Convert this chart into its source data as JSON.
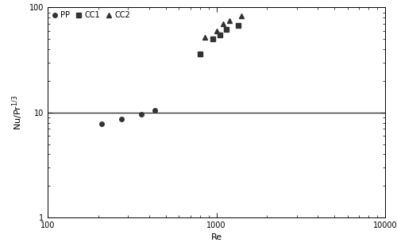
{
  "title": "",
  "xlabel": "Re",
  "ylabel": "Nu/Pr$^{1/3}$",
  "xlim": [
    100,
    10000
  ],
  "ylim": [
    1,
    100
  ],
  "hline_y": 10,
  "PP": {
    "Re": [
      210,
      275,
      360,
      430
    ],
    "NuPr": [
      7.8,
      8.7,
      9.6,
      10.4
    ],
    "marker": "o",
    "label": "PP"
  },
  "CC1": {
    "Re": [
      800,
      950,
      1050,
      1150,
      1350
    ],
    "NuPr": [
      36,
      50,
      55,
      62,
      67
    ],
    "marker": "s",
    "label": "CC1"
  },
  "CC2": {
    "Re": [
      850,
      1000,
      1100,
      1200,
      1400
    ],
    "NuPr": [
      52,
      60,
      70,
      75,
      83
    ],
    "marker": "^",
    "label": "CC2"
  },
  "marker_color": "#333333",
  "marker_size": 4,
  "line_color": "#333333",
  "line_width": 1.0,
  "background_color": "#ffffff",
  "legend_fontsize": 7,
  "axis_label_fontsize": 8,
  "tick_fontsize": 7,
  "fig_width": 5.0,
  "fig_height": 3.15,
  "dpi": 100
}
